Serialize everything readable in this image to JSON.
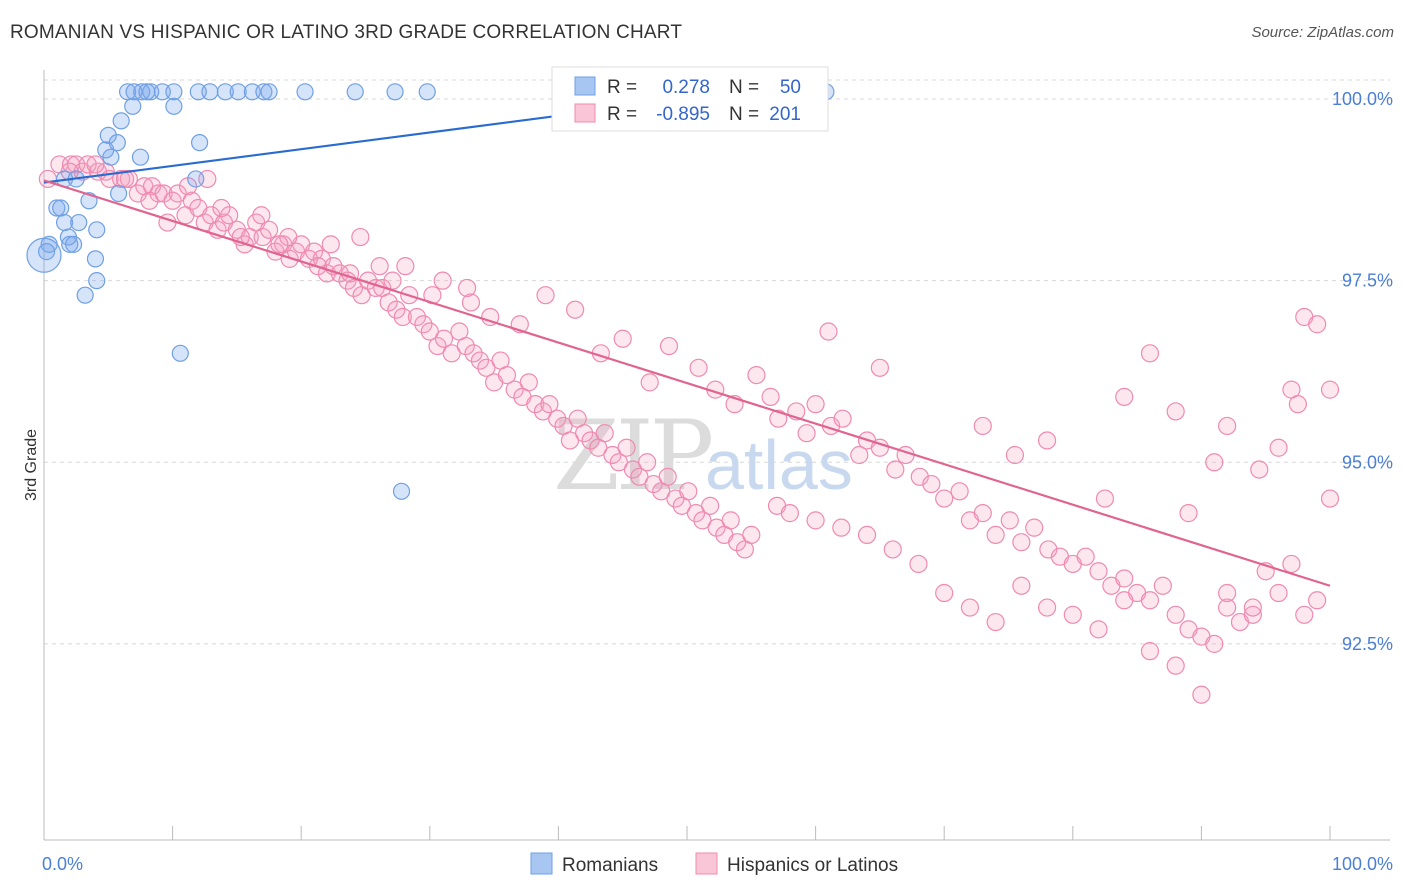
{
  "title": "ROMANIAN VS HISPANIC OR LATINO 3RD GRADE CORRELATION CHART",
  "source": "Source: ZipAtlas.com",
  "watermark": {
    "zip": "ZIP",
    "atlas": "atlas"
  },
  "colors": {
    "romanians": "#6f9fe6",
    "romanians_line": "#2a6bd0",
    "hispanics": "#f08ab0",
    "hispanics_line": "#e0648f",
    "tick_text": "#4a7fd4",
    "grid": "#d8d8d8"
  },
  "legend_box": {
    "rows": [
      {
        "r_label": "R =",
        "r_value": "0.278",
        "n_label": "N =",
        "n_value": "50"
      },
      {
        "r_label": "R =",
        "r_value": "-0.895",
        "n_label": "N =",
        "n_value": "201"
      }
    ]
  },
  "chart_data": {
    "type": "scatter",
    "title": "ROMANIAN VS HISPANIC OR LATINO 3RD GRADE CORRELATION CHART",
    "xlabel": "",
    "ylabel": "3rd Grade",
    "xlim": [
      0,
      100
    ],
    "ylim": [
      89.8,
      100.4
    ],
    "x_tick_labels": [
      {
        "value": 0,
        "label": "0.0%"
      },
      {
        "value": 100,
        "label": "100.0%"
      }
    ],
    "y_ticks": [
      {
        "value": 100.0,
        "label": "100.0%"
      },
      {
        "value": 97.5,
        "label": "97.5%"
      },
      {
        "value": 95.0,
        "label": "95.0%"
      },
      {
        "value": 92.5,
        "label": "92.5%"
      }
    ],
    "grid": true,
    "legend_placement": "bottom",
    "series": [
      {
        "name": "Romanians",
        "r": 0.278,
        "n": 50,
        "trend": [
          [
            0.0,
            98.85
          ],
          [
            50.0,
            100.0
          ]
        ],
        "points": [
          [
            6.5,
            100.1
          ],
          [
            7.0,
            100.1
          ],
          [
            7.6,
            100.1
          ],
          [
            8.3,
            100.1
          ],
          [
            8.0,
            100.1
          ],
          [
            9.2,
            100.1
          ],
          [
            10.1,
            100.1
          ],
          [
            12.0,
            100.1
          ],
          [
            12.9,
            100.1
          ],
          [
            14.1,
            100.1
          ],
          [
            15.1,
            100.1
          ],
          [
            16.2,
            100.1
          ],
          [
            17.1,
            100.1
          ],
          [
            17.5,
            100.1
          ],
          [
            20.3,
            100.1
          ],
          [
            24.2,
            100.1
          ],
          [
            27.3,
            100.1
          ],
          [
            29.8,
            100.1
          ],
          [
            53.4,
            100.1
          ],
          [
            60.8,
            100.1
          ],
          [
            6.9,
            99.9
          ],
          [
            10.1,
            99.9
          ],
          [
            6.0,
            99.7
          ],
          [
            5.0,
            99.5
          ],
          [
            5.7,
            99.4
          ],
          [
            12.1,
            99.4
          ],
          [
            4.8,
            99.3
          ],
          [
            5.2,
            99.2
          ],
          [
            7.5,
            99.2
          ],
          [
            5.8,
            98.7
          ],
          [
            1.6,
            98.9
          ],
          [
            2.5,
            98.9
          ],
          [
            11.8,
            98.9
          ],
          [
            3.5,
            98.6
          ],
          [
            1.0,
            98.5
          ],
          [
            1.3,
            98.5
          ],
          [
            1.6,
            98.3
          ],
          [
            2.7,
            98.3
          ],
          [
            2.0,
            98.0
          ],
          [
            1.9,
            98.1
          ],
          [
            2.3,
            98.0
          ],
          [
            0.4,
            98.0
          ],
          [
            0.2,
            97.9
          ],
          [
            4.0,
            97.8
          ],
          [
            4.1,
            97.5
          ],
          [
            3.2,
            97.3
          ],
          [
            10.6,
            96.5
          ],
          [
            27.8,
            94.6
          ],
          [
            4.1,
            98.2
          ],
          [
            0.0,
            97.85
          ]
        ]
      },
      {
        "name": "Hispanics or Latinos",
        "r": -0.895,
        "n": 201,
        "trend": [
          [
            0.0,
            98.88
          ],
          [
            100.0,
            93.3
          ]
        ],
        "points": [
          [
            0.3,
            98.9
          ],
          [
            1.2,
            99.1
          ],
          [
            2.1,
            99.1
          ],
          [
            2.5,
            99.1
          ],
          [
            3.0,
            99.0
          ],
          [
            3.4,
            99.1
          ],
          [
            4.2,
            99.0
          ],
          [
            4.8,
            99.0
          ],
          [
            5.1,
            98.9
          ],
          [
            6.0,
            98.9
          ],
          [
            6.6,
            98.9
          ],
          [
            7.3,
            98.7
          ],
          [
            7.8,
            98.8
          ],
          [
            8.4,
            98.8
          ],
          [
            8.9,
            98.7
          ],
          [
            9.3,
            98.7
          ],
          [
            10.0,
            98.6
          ],
          [
            10.4,
            98.7
          ],
          [
            11.0,
            98.4
          ],
          [
            11.5,
            98.6
          ],
          [
            12.0,
            98.5
          ],
          [
            12.5,
            98.3
          ],
          [
            13.0,
            98.4
          ],
          [
            13.5,
            98.2
          ],
          [
            14.0,
            98.3
          ],
          [
            14.4,
            98.4
          ],
          [
            15.0,
            98.2
          ],
          [
            15.6,
            98.0
          ],
          [
            16.0,
            98.1
          ],
          [
            16.5,
            98.3
          ],
          [
            17.0,
            98.1
          ],
          [
            17.5,
            98.2
          ],
          [
            18.0,
            97.9
          ],
          [
            18.6,
            98.0
          ],
          [
            19.1,
            97.8
          ],
          [
            19.6,
            97.9
          ],
          [
            20.0,
            98.0
          ],
          [
            20.6,
            97.8
          ],
          [
            21.0,
            97.9
          ],
          [
            21.6,
            97.8
          ],
          [
            22.0,
            97.6
          ],
          [
            22.5,
            97.7
          ],
          [
            23.0,
            97.6
          ],
          [
            23.6,
            97.5
          ],
          [
            24.1,
            97.4
          ],
          [
            24.7,
            97.3
          ],
          [
            25.2,
            97.5
          ],
          [
            25.8,
            97.4
          ],
          [
            26.3,
            97.4
          ],
          [
            26.8,
            97.2
          ],
          [
            27.4,
            97.1
          ],
          [
            27.9,
            97.0
          ],
          [
            28.4,
            97.3
          ],
          [
            29.0,
            97.0
          ],
          [
            29.5,
            96.9
          ],
          [
            30.0,
            96.8
          ],
          [
            30.6,
            96.6
          ],
          [
            31.1,
            96.7
          ],
          [
            31.7,
            96.5
          ],
          [
            32.3,
            96.8
          ],
          [
            32.8,
            96.6
          ],
          [
            33.4,
            96.5
          ],
          [
            33.9,
            96.4
          ],
          [
            34.4,
            96.3
          ],
          [
            35.0,
            96.1
          ],
          [
            35.5,
            96.4
          ],
          [
            36.0,
            96.2
          ],
          [
            36.6,
            96.0
          ],
          [
            37.2,
            95.9
          ],
          [
            37.7,
            96.1
          ],
          [
            38.2,
            95.8
          ],
          [
            38.8,
            95.7
          ],
          [
            39.3,
            95.8
          ],
          [
            39.9,
            95.6
          ],
          [
            40.4,
            95.5
          ],
          [
            40.9,
            95.3
          ],
          [
            41.5,
            95.6
          ],
          [
            42.0,
            95.4
          ],
          [
            42.5,
            95.3
          ],
          [
            43.1,
            95.2
          ],
          [
            43.6,
            95.4
          ],
          [
            44.2,
            95.1
          ],
          [
            44.7,
            95.0
          ],
          [
            45.3,
            95.2
          ],
          [
            45.8,
            94.9
          ],
          [
            46.3,
            94.8
          ],
          [
            46.9,
            95.0
          ],
          [
            47.4,
            94.7
          ],
          [
            48.0,
            94.6
          ],
          [
            48.5,
            94.8
          ],
          [
            49.1,
            94.5
          ],
          [
            49.6,
            94.4
          ],
          [
            50.1,
            94.6
          ],
          [
            50.7,
            94.3
          ],
          [
            51.2,
            94.2
          ],
          [
            51.8,
            94.4
          ],
          [
            52.3,
            94.1
          ],
          [
            52.9,
            94.0
          ],
          [
            53.4,
            94.2
          ],
          [
            53.9,
            93.9
          ],
          [
            54.5,
            93.8
          ],
          [
            55.0,
            94.0
          ],
          [
            2.0,
            99.0
          ],
          [
            4.0,
            99.1
          ],
          [
            6.3,
            98.9
          ],
          [
            8.2,
            98.6
          ],
          [
            11.2,
            98.8
          ],
          [
            13.8,
            98.5
          ],
          [
            16.9,
            98.4
          ],
          [
            19.0,
            98.1
          ],
          [
            22.3,
            98.0
          ],
          [
            24.6,
            98.1
          ],
          [
            26.1,
            97.7
          ],
          [
            28.1,
            97.7
          ],
          [
            31.0,
            97.5
          ],
          [
            33.2,
            97.2
          ],
          [
            34.7,
            97.0
          ],
          [
            37.0,
            96.9
          ],
          [
            39.0,
            97.3
          ],
          [
            41.3,
            97.1
          ],
          [
            43.3,
            96.5
          ],
          [
            45.0,
            96.7
          ],
          [
            47.1,
            96.1
          ],
          [
            48.6,
            96.6
          ],
          [
            50.9,
            96.3
          ],
          [
            52.2,
            96.0
          ],
          [
            53.7,
            95.8
          ],
          [
            55.4,
            96.2
          ],
          [
            56.5,
            95.9
          ],
          [
            57.1,
            95.6
          ],
          [
            58.5,
            95.7
          ],
          [
            59.3,
            95.4
          ],
          [
            60.0,
            95.8
          ],
          [
            61.2,
            95.5
          ],
          [
            62.1,
            95.6
          ],
          [
            63.4,
            95.1
          ],
          [
            64.0,
            95.3
          ],
          [
            65.0,
            95.2
          ],
          [
            66.2,
            94.9
          ],
          [
            67.0,
            95.1
          ],
          [
            68.1,
            94.8
          ],
          [
            69.0,
            94.7
          ],
          [
            70.0,
            94.5
          ],
          [
            71.2,
            94.6
          ],
          [
            72.0,
            94.2
          ],
          [
            73.0,
            94.3
          ],
          [
            74.0,
            94.0
          ],
          [
            75.1,
            94.2
          ],
          [
            76.0,
            93.9
          ],
          [
            77.0,
            94.1
          ],
          [
            78.1,
            93.8
          ],
          [
            79.0,
            93.7
          ],
          [
            80.0,
            93.6
          ],
          [
            81.0,
            93.7
          ],
          [
            82.0,
            93.5
          ],
          [
            83.0,
            93.3
          ],
          [
            84.0,
            93.4
          ],
          [
            85.0,
            93.2
          ],
          [
            86.0,
            93.1
          ],
          [
            87.0,
            93.3
          ],
          [
            88.0,
            92.9
          ],
          [
            89.0,
            92.7
          ],
          [
            90.0,
            92.6
          ],
          [
            91.0,
            92.5
          ],
          [
            92.0,
            93.0
          ],
          [
            93.0,
            92.8
          ],
          [
            94.0,
            92.9
          ],
          [
            95.0,
            93.5
          ],
          [
            96.0,
            93.2
          ],
          [
            97.0,
            93.6
          ],
          [
            98.0,
            92.9
          ],
          [
            99.0,
            93.1
          ],
          [
            57.0,
            94.4
          ],
          [
            58.0,
            94.3
          ],
          [
            60.0,
            94.2
          ],
          [
            62.0,
            94.1
          ],
          [
            64.0,
            94.0
          ],
          [
            66.0,
            93.8
          ],
          [
            68.0,
            93.6
          ],
          [
            70.0,
            93.2
          ],
          [
            72.0,
            93.0
          ],
          [
            74.0,
            92.8
          ],
          [
            76.0,
            93.3
          ],
          [
            78.0,
            93.0
          ],
          [
            80.0,
            92.9
          ],
          [
            82.0,
            92.7
          ],
          [
            84.0,
            93.1
          ],
          [
            86.0,
            92.4
          ],
          [
            88.0,
            92.2
          ],
          [
            90.0,
            91.8
          ],
          [
            92.0,
            93.2
          ],
          [
            94.0,
            93.0
          ],
          [
            61.0,
            96.8
          ],
          [
            65.0,
            96.3
          ],
          [
            73.0,
            95.5
          ],
          [
            78.0,
            95.3
          ],
          [
            84.0,
            95.9
          ],
          [
            86.0,
            96.5
          ],
          [
            88.0,
            95.7
          ],
          [
            91.0,
            95.0
          ],
          [
            92.0,
            95.5
          ],
          [
            96.0,
            95.2
          ],
          [
            97.0,
            96.0
          ],
          [
            98.0,
            97.0
          ],
          [
            99.0,
            96.9
          ],
          [
            100.0,
            96.0
          ],
          [
            100.0,
            94.5
          ],
          [
            97.5,
            95.8
          ],
          [
            94.5,
            94.9
          ],
          [
            89.0,
            94.3
          ],
          [
            82.5,
            94.5
          ],
          [
            75.5,
            95.1
          ],
          [
            9.6,
            98.3
          ],
          [
            12.7,
            98.9
          ],
          [
            15.3,
            98.1
          ],
          [
            18.3,
            98.0
          ],
          [
            21.3,
            97.7
          ],
          [
            23.8,
            97.6
          ],
          [
            27.1,
            97.5
          ],
          [
            30.2,
            97.3
          ],
          [
            32.9,
            97.4
          ]
        ]
      }
    ]
  },
  "bottom_legend": [
    {
      "label": "Romanians"
    },
    {
      "label": "Hispanics or Latinos"
    }
  ]
}
